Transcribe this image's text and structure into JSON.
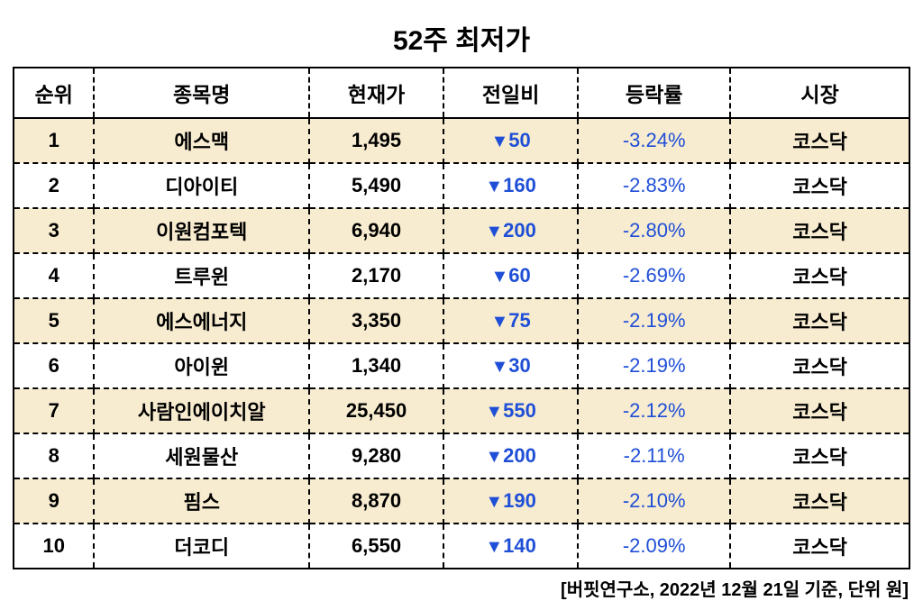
{
  "title": "52주 최저가",
  "columns": {
    "rank": "순위",
    "name": "종목명",
    "price": "현재가",
    "change": "전일비",
    "rate": "등락률",
    "market": "시장"
  },
  "style": {
    "arrow_glyph": "▼",
    "arrow_color": "#1f4fd6",
    "change_color": "#1f4fd6",
    "rate_color": "#1f4fd6",
    "odd_row_bg": "#f8ecd0",
    "even_row_bg": "#ffffff",
    "border_color": "#000000",
    "title_fontsize": 30,
    "header_fontsize": 23,
    "cell_fontsize": 22,
    "footnote_fontsize": 20
  },
  "rows": [
    {
      "rank": "1",
      "name": "에스맥",
      "price": "1,495",
      "change": "50",
      "rate": "-3.24%",
      "market": "코스닥"
    },
    {
      "rank": "2",
      "name": "디아이티",
      "price": "5,490",
      "change": "160",
      "rate": "-2.83%",
      "market": "코스닥"
    },
    {
      "rank": "3",
      "name": "이원컴포텍",
      "price": "6,940",
      "change": "200",
      "rate": "-2.80%",
      "market": "코스닥"
    },
    {
      "rank": "4",
      "name": "트루윈",
      "price": "2,170",
      "change": "60",
      "rate": "-2.69%",
      "market": "코스닥"
    },
    {
      "rank": "5",
      "name": "에스에너지",
      "price": "3,350",
      "change": "75",
      "rate": "-2.19%",
      "market": "코스닥"
    },
    {
      "rank": "6",
      "name": "아이윈",
      "price": "1,340",
      "change": "30",
      "rate": "-2.19%",
      "market": "코스닥"
    },
    {
      "rank": "7",
      "name": "사람인에이치알",
      "price": "25,450",
      "change": "550",
      "rate": "-2.12%",
      "market": "코스닥"
    },
    {
      "rank": "8",
      "name": "세원물산",
      "price": "9,280",
      "change": "200",
      "rate": "-2.11%",
      "market": "코스닥"
    },
    {
      "rank": "9",
      "name": "핌스",
      "price": "8,870",
      "change": "190",
      "rate": "-2.10%",
      "market": "코스닥"
    },
    {
      "rank": "10",
      "name": "더코디",
      "price": "6,550",
      "change": "140",
      "rate": "-2.09%",
      "market": "코스닥"
    }
  ],
  "footnote": "[버핏연구소, 2022년 12월 21일 기준, 단위 원]"
}
